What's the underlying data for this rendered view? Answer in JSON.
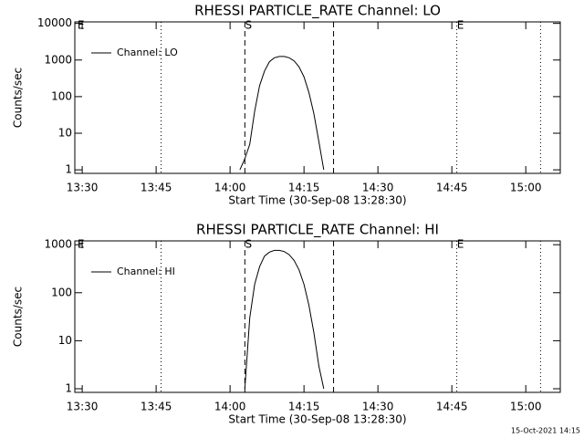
{
  "chart_data": [
    {
      "type": "line",
      "title": "RHESSI PARTICLE_RATE Channel: LO",
      "xlabel": "Start Time (30-Sep-08 13:28:30)",
      "ylabel": "Counts/sec",
      "x": [
        "14:02",
        "14:03",
        "14:04",
        "14:05",
        "14:06",
        "14:07",
        "14:08",
        "14:09",
        "14:10",
        "14:11",
        "14:12",
        "14:13",
        "14:14",
        "14:15",
        "14:16",
        "14:17",
        "14:18",
        "14:19"
      ],
      "series": [
        {
          "name": "Channel: LO",
          "color": "#000000",
          "values": [
            1,
            2,
            5,
            40,
            200,
            500,
            900,
            1150,
            1250,
            1250,
            1150,
            950,
            650,
            350,
            130,
            35,
            6,
            1
          ]
        }
      ],
      "xlim": [
        "13:28:30",
        "15:07"
      ],
      "xticks": [
        "13:30",
        "13:45",
        "14:00",
        "14:15",
        "14:30",
        "14:45",
        "15:00"
      ],
      "ylim": [
        0.8,
        11000
      ],
      "yticks": [
        1,
        10,
        100,
        1000,
        10000
      ],
      "log_y": true,
      "legend": "upper left",
      "vlines": [
        {
          "x": "13:46",
          "style": "dotted"
        },
        {
          "x": "14:03",
          "style": "dashed"
        },
        {
          "x": "14:21",
          "style": "dashed"
        },
        {
          "x": "14:46",
          "style": "dotted"
        },
        {
          "x": "15:03",
          "style": "dotted"
        }
      ],
      "annotations": [
        {
          "text": "E",
          "x": "13:29"
        },
        {
          "text": "S",
          "x": "14:03"
        },
        {
          "text": "E",
          "x": "14:46"
        }
      ]
    },
    {
      "type": "line",
      "title": "RHESSI PARTICLE_RATE Channel: HI",
      "xlabel": "Start Time (30-Sep-08 13:28:30)",
      "ylabel": "Counts/sec",
      "x": [
        "14:03",
        "14:04",
        "14:05",
        "14:06",
        "14:07",
        "14:08",
        "14:09",
        "14:10",
        "14:11",
        "14:12",
        "14:13",
        "14:14",
        "14:15",
        "14:16",
        "14:17",
        "14:18",
        "14:19"
      ],
      "series": [
        {
          "name": "Channel: HI",
          "color": "#000000",
          "values": [
            1,
            30,
            150,
            350,
            580,
            700,
            760,
            760,
            720,
            620,
            470,
            300,
            150,
            55,
            15,
            3,
            1
          ]
        }
      ],
      "xlim": [
        "13:28:30",
        "15:07"
      ],
      "xticks": [
        "13:30",
        "13:45",
        "14:00",
        "14:15",
        "14:30",
        "14:45",
        "15:00"
      ],
      "ylim": [
        0.84,
        1200
      ],
      "yticks": [
        1,
        10,
        100,
        1000
      ],
      "log_y": true,
      "legend": "upper left",
      "vlines": [
        {
          "x": "13:46",
          "style": "dotted"
        },
        {
          "x": "14:03",
          "style": "dashed"
        },
        {
          "x": "14:21",
          "style": "dashed"
        },
        {
          "x": "14:46",
          "style": "dotted"
        },
        {
          "x": "15:03",
          "style": "dotted"
        }
      ],
      "annotations": [
        {
          "text": "E",
          "x": "13:29"
        },
        {
          "text": "S",
          "x": "14:03"
        },
        {
          "text": "E",
          "x": "14:46"
        }
      ]
    }
  ],
  "footer": "15-Oct-2021 14:15"
}
